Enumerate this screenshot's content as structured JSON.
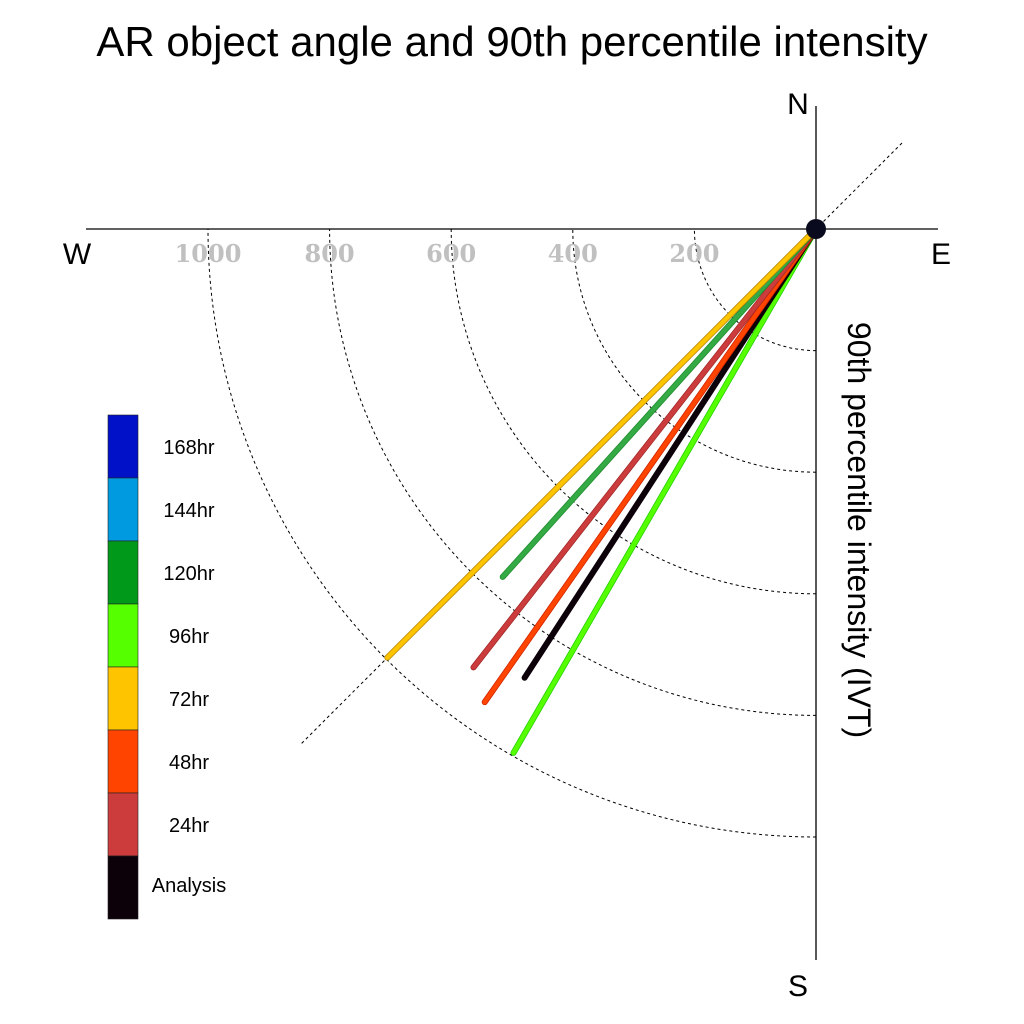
{
  "chart_data": {
    "type": "polar-vector",
    "title": "AR object angle and 90th percentile intensity",
    "radial_label": "90th percentile intensity (IVT)",
    "directions": {
      "north": "N",
      "east": "E",
      "south": "S",
      "west": "W"
    },
    "radial_ticks": [
      200,
      400,
      600,
      800,
      1000
    ],
    "radial_tick_labels": [
      "200",
      "400",
      "600",
      "800",
      "1000"
    ],
    "reference_angle_deg": 45,
    "rmax": 1200,
    "series": [
      {
        "name": "96hr",
        "angle_deg": 210,
        "intensity": 995,
        "color": "#55ff00",
        "outline": "#22cc00",
        "width": 4.5
      },
      {
        "name": "Analysis",
        "angle_deg": 213,
        "intensity": 880,
        "color": "#0c0009",
        "outline": "#0c0009",
        "width": 6
      },
      {
        "name": "48hr",
        "angle_deg": 215,
        "intensity": 950,
        "color": "#ff4400",
        "outline": "#cc2200",
        "width": 4.5
      },
      {
        "name": "24hr",
        "angle_deg": 218,
        "intensity": 915,
        "color": "#cc3c3c",
        "outline": "#a02828",
        "width": 4.5
      },
      {
        "name": "120hr",
        "angle_deg": 222,
        "intensity": 770,
        "color": "#33aa44",
        "outline": "#1e8a2e",
        "width": 4.5
      },
      {
        "name": "72hr",
        "angle_deg": 225,
        "intensity": 997,
        "color": "#ffc400",
        "outline": "#b08400",
        "width": 4.5
      }
    ],
    "legend": [
      {
        "label": "168hr",
        "color": "#0011c8"
      },
      {
        "label": "144hr",
        "color": "#009ae0"
      },
      {
        "label": "120hr",
        "color": "#00991a"
      },
      {
        "label": "96hr",
        "color": "#55ff00"
      },
      {
        "label": "72hr",
        "color": "#ffc400"
      },
      {
        "label": "48hr",
        "color": "#ff4400"
      },
      {
        "label": "24hr",
        "color": "#cc3c3c"
      },
      {
        "label": "Analysis",
        "color": "#0c0009"
      }
    ],
    "legend_placement": "left"
  }
}
